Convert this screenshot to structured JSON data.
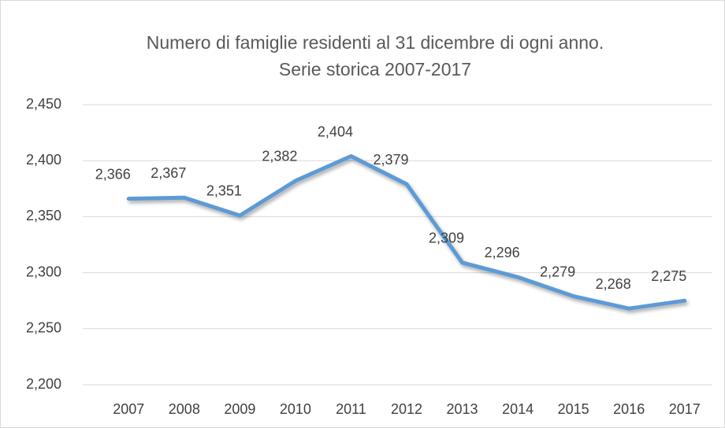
{
  "chart_data": {
    "type": "line",
    "title": [
      "Numero di famiglie residenti al 31 dicembre di ogni anno.",
      "Serie storica 2007-2017"
    ],
    "categories": [
      "2007",
      "2008",
      "2009",
      "2010",
      "2011",
      "2012",
      "2013",
      "2014",
      "2015",
      "2016",
      "2017"
    ],
    "series": [
      {
        "color": "#5b9bd5",
        "values": [
          2366,
          2367,
          2351,
          2382,
          2404,
          2379,
          2309,
          2296,
          2279,
          2268,
          2275
        ],
        "value_labels": [
          "2,366",
          "2,367",
          "2,351",
          "2,382",
          "2,404",
          "2,379",
          "2,309",
          "2,296",
          "2,279",
          "2,268",
          "2,275"
        ]
      }
    ],
    "ylim": [
      2200,
      2450
    ],
    "yticks": [
      {
        "value": 2200,
        "label": "2,200"
      },
      {
        "value": 2250,
        "label": "2,250"
      },
      {
        "value": 2300,
        "label": "2,300"
      },
      {
        "value": 2350,
        "label": "2,350"
      },
      {
        "value": 2400,
        "label": "2,400"
      },
      {
        "value": 2450,
        "label": "2,450"
      }
    ],
    "grid": true
  }
}
